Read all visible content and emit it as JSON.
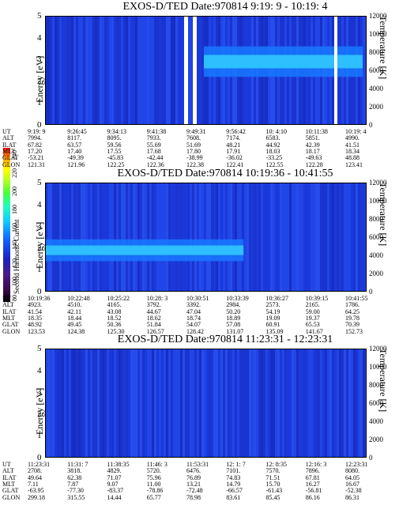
{
  "panels": [
    {
      "title": "EXOS-D/TED   Date:970814  9:19: 9 - 10:19: 4",
      "ylabel": "Energy [eV]",
      "y2label": "Temperature [K]",
      "yticks": [
        "5",
        "4",
        "3",
        "2",
        "1",
        "0"
      ],
      "y2ticks": [
        "12000",
        "10000",
        "8000",
        "6000",
        "4000",
        "2000",
        "0"
      ],
      "rows": {
        "UT": [
          "9:19: 9",
          "9:26:45",
          "9:34:13",
          "9:41:38",
          "9:49:31",
          "9:56:42",
          "10: 4:10",
          "10:11:38",
          "10:19: 4"
        ],
        "ALT": [
          "7994.",
          "8117.",
          "8095.",
          "7933.",
          "7608.",
          "7174.",
          "6583.",
          "5851.",
          "4990."
        ],
        "ILAT": [
          "67.82",
          "63.57",
          "59.56",
          "55.69",
          "51.69",
          "48.21",
          "44.92",
          "42.39",
          "41.51"
        ],
        "MLT": [
          "17.20",
          "17.40",
          "17.55",
          "17.68",
          "17.80",
          "17.91",
          "18.03",
          "18.17",
          "18.34"
        ],
        "GLAT": [
          "-53.21",
          "-49.39",
          "-45.83",
          "-42.44",
          "-38.99",
          "-36.02",
          "-33.25",
          "-49.63",
          "48.88"
        ],
        "GLON": [
          "121.31",
          "121.96",
          "122.25",
          "122.36",
          "122.38",
          "122.41",
          "122.55",
          "122.28",
          "123.41"
        ]
      }
    },
    {
      "title": "EXOS-D/TED   Date:970814  10:19:36 - 10:41:55",
      "ylabel": "Energy [eV]",
      "y2label": "Temperature [K]",
      "yticks": [
        "5",
        "4",
        "3",
        "2",
        "1",
        "0"
      ],
      "y2ticks": [
        "12000",
        "10000",
        "8000",
        "6000",
        "4000",
        "2000",
        "0"
      ],
      "rows": {
        "UT": [
          "10:19:36",
          "10:22:48",
          "10:25:22",
          "10:28: 3",
          "10:30:51",
          "10:33:39",
          "10:36:27",
          "10:39:15",
          "10:41:55"
        ],
        "ALT": [
          "4923.",
          "4510.",
          "4165.",
          "3792.",
          "3392.",
          "2984.",
          "2573.",
          "2165.",
          "1786."
        ],
        "ILAT": [
          "41.54",
          "42.11",
          "43.08",
          "44.67",
          "47.04",
          "50.20",
          "54.19",
          "59.00",
          "64.25"
        ],
        "MLT": [
          "18.35",
          "18.44",
          "18.52",
          "18.62",
          "18.74",
          "18.89",
          "19.09",
          "19.37",
          "19.78"
        ],
        "GLAT": [
          "48.92",
          "49.45",
          "50.36",
          "51.84",
          "54.07",
          "57.08",
          "60.91",
          "65.53",
          "70.39"
        ],
        "GLON": [
          "123.53",
          "124.38",
          "125.30",
          "126.57",
          "128.42",
          "131.07",
          "135.09",
          "141.67",
          "152.73"
        ]
      }
    },
    {
      "title": "EXOS-D/TED   Date:970814  11:23:31 - 12:23:31",
      "ylabel": "Energy [eV]",
      "y2label": "Temperature [K]",
      "yticks": [
        "5",
        "4",
        "3",
        "2",
        "1",
        "0"
      ],
      "y2ticks": [
        "12000",
        "10000",
        "8000",
        "6000",
        "4000",
        "2000",
        "0"
      ],
      "rows": {
        "UT": [
          "11:23:31",
          "11:31: 7",
          "11:38:35",
          "11:46: 3",
          "11:53:31",
          "12: 1: 7",
          "12: 8:35",
          "12:16: 3",
          "12:23:31"
        ],
        "ALT": [
          "2708.",
          "3818.",
          "4829.",
          "5720.",
          "6476.",
          "7101.",
          "7570.",
          "7896.",
          "8080."
        ],
        "ILAT": [
          "49.64",
          "62.38",
          "71.07",
          "75.96",
          "76.89",
          "74.83",
          "71.51",
          "67.81",
          "64.05"
        ],
        "MLT": [
          "7.11",
          "7.87",
          "9.07",
          "11.00",
          "13.21",
          "14.79",
          "15.70",
          "16.27",
          "16.67"
        ],
        "GLAT": [
          "-63.95",
          "-77.30",
          "-83.37",
          "-78.86",
          "-72.48",
          "-66.57",
          "-61.43",
          "-56.81",
          "-52.38"
        ],
        "GLON": [
          "299.18",
          "315.55",
          "14.44",
          "65.77",
          "78.98",
          "83.61",
          "85.45",
          "86.16",
          "86.31"
        ]
      }
    }
  ],
  "row_labels": [
    "UT",
    "ALT",
    "ILAT",
    "MLT",
    "GLAT",
    "GLON"
  ],
  "colorbar": {
    "label": "Second Harmonic Current",
    "ticks": [
      "240",
      "220",
      "200",
      "180",
      "160",
      "140",
      "120",
      "100",
      "80"
    ],
    "colors": [
      "#000000",
      "#2a0a3a",
      "#5a1a7a",
      "#1a1aa0",
      "#1040e0",
      "#1070ff",
      "#10c0ff",
      "#20ffd0",
      "#40ff40",
      "#a0ff20",
      "#ffff00",
      "#ffa000",
      "#ff2000"
    ]
  },
  "chart_data": [
    {
      "type": "heatmap",
      "title": "EXOS-D/TED   Date:970814  9:19: 9 - 10:19: 4",
      "xlabel": "UT",
      "ylabel": "Energy [eV]",
      "y2label": "Temperature [K]",
      "ylim": [
        0,
        5
      ],
      "y2lim": [
        0,
        12000
      ],
      "x": [
        "9:19: 9",
        "9:26:45",
        "9:34:13",
        "9:41:38",
        "9:49:31",
        "9:56:42",
        "10: 4:10",
        "10:11:38",
        "10:19: 4"
      ],
      "bands": [
        {
          "from": "9:49:31",
          "to": "10:19: 4",
          "energy_low": 2.2,
          "energy_high": 3.6,
          "level": "cyan"
        }
      ],
      "gaps": [
        "~9:41:38",
        "~9:48:00"
      ]
    },
    {
      "type": "heatmap",
      "title": "EXOS-D/TED   Date:970814  10:19:36 - 10:41:55",
      "xlabel": "UT",
      "ylabel": "Energy [eV]",
      "y2label": "Temperature [K]",
      "ylim": [
        0,
        5
      ],
      "y2lim": [
        0,
        12000
      ],
      "x": [
        "10:19:36",
        "10:22:48",
        "10:25:22",
        "10:28: 3",
        "10:30:51",
        "10:33:39",
        "10:36:27",
        "10:39:15",
        "10:41:55"
      ],
      "bands": [
        {
          "from": "10:19:36",
          "to": "10:33:39",
          "energy_low": 1.4,
          "energy_high": 2.4,
          "level": "cyan"
        }
      ]
    },
    {
      "type": "heatmap",
      "title": "EXOS-D/TED   Date:970814  11:23:31 - 12:23:31",
      "xlabel": "UT",
      "ylabel": "Energy [eV]",
      "y2label": "Temperature [K]",
      "ylim": [
        0,
        5
      ],
      "y2lim": [
        0,
        12000
      ],
      "x": [
        "11:23:31",
        "11:31: 7",
        "11:38:35",
        "11:46: 3",
        "11:53:31",
        "12: 1: 7",
        "12: 8:35",
        "12:16: 3",
        "12:23:31"
      ],
      "bands": []
    }
  ]
}
